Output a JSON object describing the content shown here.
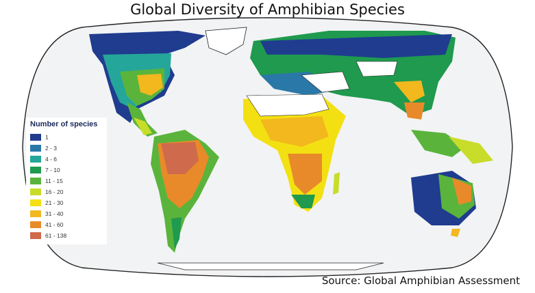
{
  "title": "Global Diversity of Amphibian Species",
  "source": "Source: Global Amphibian Assessment",
  "legend": {
    "title": "Number of species",
    "items": [
      {
        "label": "1",
        "color": "#1f3c8f"
      },
      {
        "label": "2 - 3",
        "color": "#2a78a8"
      },
      {
        "label": "4 - 6",
        "color": "#25a69a"
      },
      {
        "label": "7 - 10",
        "color": "#1f9a4e"
      },
      {
        "label": "11 - 15",
        "color": "#5ab43c"
      },
      {
        "label": "16 - 20",
        "color": "#c8dc2a"
      },
      {
        "label": "21 - 30",
        "color": "#f3e012"
      },
      {
        "label": "31 - 40",
        "color": "#f2b81e"
      },
      {
        "label": "41 - 60",
        "color": "#e88a2a"
      },
      {
        "label": "61 - 138",
        "color": "#cf6a4c"
      }
    ]
  },
  "map": {
    "ocean_color": "#f2f3f4",
    "border_color": "#222222"
  }
}
